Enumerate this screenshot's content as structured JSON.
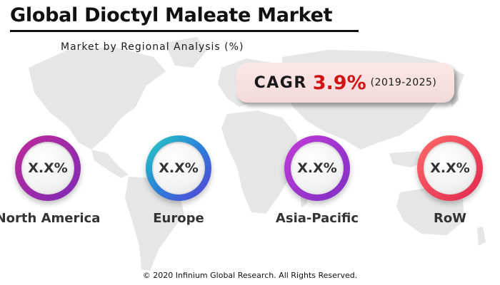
{
  "title": "Global Dioctyl Maleate Market",
  "subtitle": "Market by Regional Analysis (%)",
  "cagr": {
    "label": "CAGR",
    "value": "3.9%",
    "period": "(2019-2025)",
    "value_color": "#d11414"
  },
  "regions": [
    {
      "name": "North America",
      "value": "X.X%",
      "ring_colors": [
        "#c02a9a",
        "#7c2bb6"
      ]
    },
    {
      "name": "Europe",
      "value": "X.X%",
      "ring_colors": [
        "#27d0c0",
        "#5a3fd6"
      ]
    },
    {
      "name": "Asia-Pacific",
      "value": "X.X%",
      "ring_colors": [
        "#c43ad8",
        "#7d2fc4"
      ]
    },
    {
      "name": "RoW",
      "value": "X.X%",
      "ring_colors": [
        "#ff6a6a",
        "#e0284f"
      ]
    }
  ],
  "background_icon": "world-map-icon",
  "footer": "© 2020 Infinium Global Research. All Rights Reserved."
}
